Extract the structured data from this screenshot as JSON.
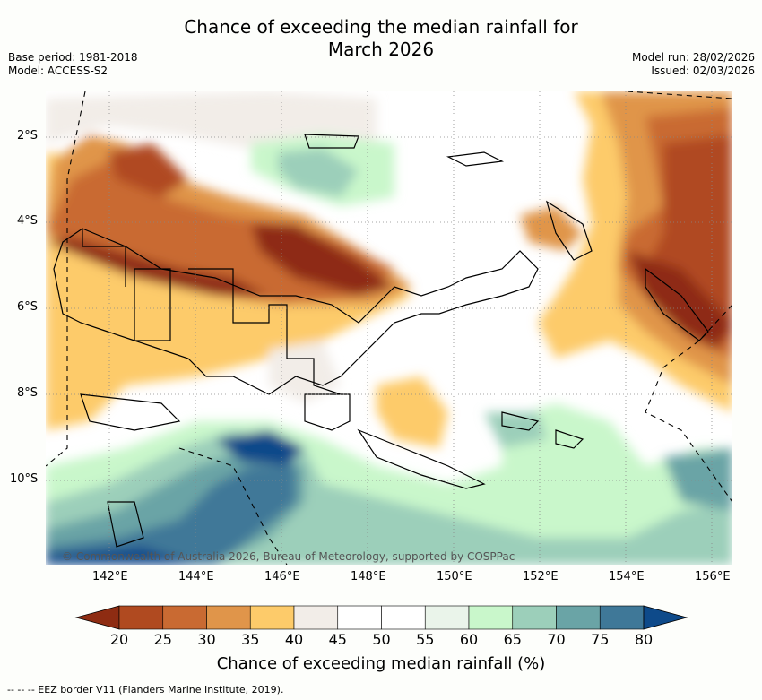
{
  "title_line1": "Chance of exceeding the median rainfall for",
  "title_line2": "March 2026",
  "base_period": "Base period: 1981-2018",
  "model": "Model: ACCESS-S2",
  "model_run": "Model run: 28/02/2026",
  "issued": "Issued: 02/03/2026",
  "lat_labels": [
    "2°S",
    "4°S",
    "6°S",
    "8°S",
    "10°S"
  ],
  "lon_labels": [
    "142°E",
    "144°E",
    "146°E",
    "148°E",
    "150°E",
    "152°E",
    "154°E",
    "156°E"
  ],
  "credit": "© Commonwealth of Australia 2026, Bureau of Meteorology, supported by COSPPac",
  "colorbar": {
    "labels": [
      "20",
      "25",
      "30",
      "35",
      "40",
      "45",
      "50",
      "55",
      "60",
      "65",
      "70",
      "75",
      "80"
    ],
    "colors": [
      "#8e2c12",
      "#b04a20",
      "#c96a32",
      "#e0954a",
      "#fdcb6a",
      "#f2ede8",
      "#ffffff",
      "#ffffff",
      "#eaf4ea",
      "#c9f7cb",
      "#9ccfba",
      "#6aa4a6",
      "#3f7898",
      "#0e4a8a"
    ],
    "title": "Chance of exceeding median rainfall (%)"
  },
  "eez_note": "-- -- -- EEZ border V11 (Flanders Marine Institute, 2019)."
}
